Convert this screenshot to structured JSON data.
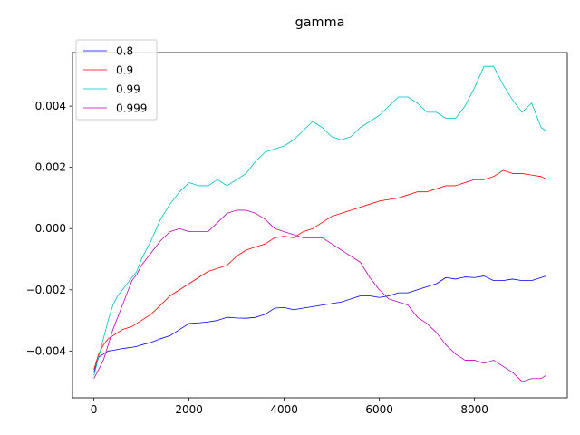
{
  "chart_data": {
    "type": "line",
    "title": "gamma",
    "xlabel": "",
    "ylabel": "",
    "xlim": [
      -450,
      9950
    ],
    "ylim": [
      -0.00553,
      0.00575
    ],
    "xticks": [
      0,
      2000,
      4000,
      6000,
      8000
    ],
    "xtick_labels": [
      "0",
      "2000",
      "4000",
      "6000",
      "8000"
    ],
    "yticks": [
      -0.004,
      -0.002,
      0.0,
      0.002,
      0.004
    ],
    "ytick_labels": [
      "−0.004",
      "−0.002",
      "0.000",
      "0.002",
      "0.004"
    ],
    "grid": false,
    "legend_position": "top-left",
    "x": [
      0,
      100,
      200,
      300,
      400,
      500,
      600,
      700,
      800,
      900,
      1000,
      1200,
      1400,
      1600,
      1800,
      2000,
      2200,
      2400,
      2600,
      2800,
      3000,
      3200,
      3400,
      3600,
      3800,
      4000,
      4200,
      4400,
      4600,
      4800,
      5000,
      5200,
      5400,
      5600,
      5800,
      6000,
      6200,
      6400,
      6600,
      6800,
      7000,
      7200,
      7400,
      7600,
      7800,
      8000,
      8200,
      8400,
      8600,
      8800,
      9000,
      9200,
      9400,
      9500
    ],
    "series": [
      {
        "name": "0.8",
        "color": "#0000ff",
        "values": [
          -0.0047,
          -0.0042,
          -0.0041,
          -0.004,
          -0.00398,
          -0.00395,
          -0.00392,
          -0.0039,
          -0.00388,
          -0.00385,
          -0.0038,
          -0.00372,
          -0.0036,
          -0.0035,
          -0.0033,
          -0.0031,
          -0.00308,
          -0.00305,
          -0.003,
          -0.0029,
          -0.00292,
          -0.00293,
          -0.0029,
          -0.0028,
          -0.0026,
          -0.00258,
          -0.00265,
          -0.0026,
          -0.00255,
          -0.0025,
          -0.00245,
          -0.0024,
          -0.0023,
          -0.0022,
          -0.0022,
          -0.00225,
          -0.0022,
          -0.0021,
          -0.0021,
          -0.002,
          -0.0019,
          -0.0018,
          -0.0016,
          -0.00165,
          -0.00158,
          -0.0016,
          -0.00155,
          -0.0017,
          -0.0017,
          -0.00165,
          -0.0017,
          -0.0017,
          -0.0016,
          -0.00155
        ]
      },
      {
        "name": "0.9",
        "color": "#ff0000",
        "values": [
          -0.0046,
          -0.0041,
          -0.0038,
          -0.0036,
          -0.0035,
          -0.0034,
          -0.0033,
          -0.00325,
          -0.0032,
          -0.0031,
          -0.003,
          -0.0028,
          -0.0025,
          -0.0022,
          -0.002,
          -0.0018,
          -0.0016,
          -0.0014,
          -0.0013,
          -0.0012,
          -0.0009,
          -0.0007,
          -0.0006,
          -0.0005,
          -0.0003,
          -0.00025,
          -0.0003,
          -0.0001,
          0.0,
          0.0002,
          0.0004,
          0.0005,
          0.0006,
          0.0007,
          0.0008,
          0.0009,
          0.00095,
          0.001,
          0.0011,
          0.0012,
          0.0012,
          0.0013,
          0.0014,
          0.0014,
          0.0015,
          0.0016,
          0.0016,
          0.0017,
          0.0019,
          0.0018,
          0.0018,
          0.00175,
          0.0017,
          0.00162
        ]
      },
      {
        "name": "0.99",
        "color": "#00bfbf",
        "values": [
          -0.0048,
          -0.0042,
          -0.0036,
          -0.003,
          -0.0025,
          -0.0022,
          -0.002,
          -0.0018,
          -0.0016,
          -0.0014,
          -0.001,
          -0.0004,
          0.0003,
          0.0008,
          0.0012,
          0.0015,
          0.0014,
          0.0014,
          0.0016,
          0.0014,
          0.0016,
          0.0018,
          0.0022,
          0.0025,
          0.0026,
          0.0027,
          0.0029,
          0.0032,
          0.0035,
          0.0033,
          0.003,
          0.0029,
          0.003,
          0.0033,
          0.0035,
          0.0037,
          0.004,
          0.0043,
          0.0043,
          0.0041,
          0.0038,
          0.0038,
          0.0036,
          0.0036,
          0.004,
          0.0046,
          0.0053,
          0.0053,
          0.0047,
          0.0042,
          0.0038,
          0.0041,
          0.0033,
          0.0032
        ]
      },
      {
        "name": "0.999",
        "color": "#bf00bf",
        "values": [
          -0.0049,
          -0.0046,
          -0.0043,
          -0.0038,
          -0.0033,
          -0.0029,
          -0.0025,
          -0.0021,
          -0.0017,
          -0.0015,
          -0.0012,
          -0.0008,
          -0.0004,
          -0.0001,
          0.0,
          -0.0001,
          -0.0001,
          -0.0001,
          0.0002,
          0.0005,
          0.0006,
          0.0006,
          0.0005,
          0.0003,
          0.0,
          -0.0001,
          -0.0002,
          -0.0003,
          -0.0003,
          -0.0003,
          -0.0005,
          -0.0007,
          -0.0009,
          -0.0011,
          -0.0016,
          -0.002,
          -0.0023,
          -0.0024,
          -0.0025,
          -0.0029,
          -0.0031,
          -0.0034,
          -0.0038,
          -0.0041,
          -0.0043,
          -0.0043,
          -0.0044,
          -0.0043,
          -0.0045,
          -0.0047,
          -0.005,
          -0.0049,
          -0.0049,
          -0.0048
        ]
      }
    ]
  }
}
